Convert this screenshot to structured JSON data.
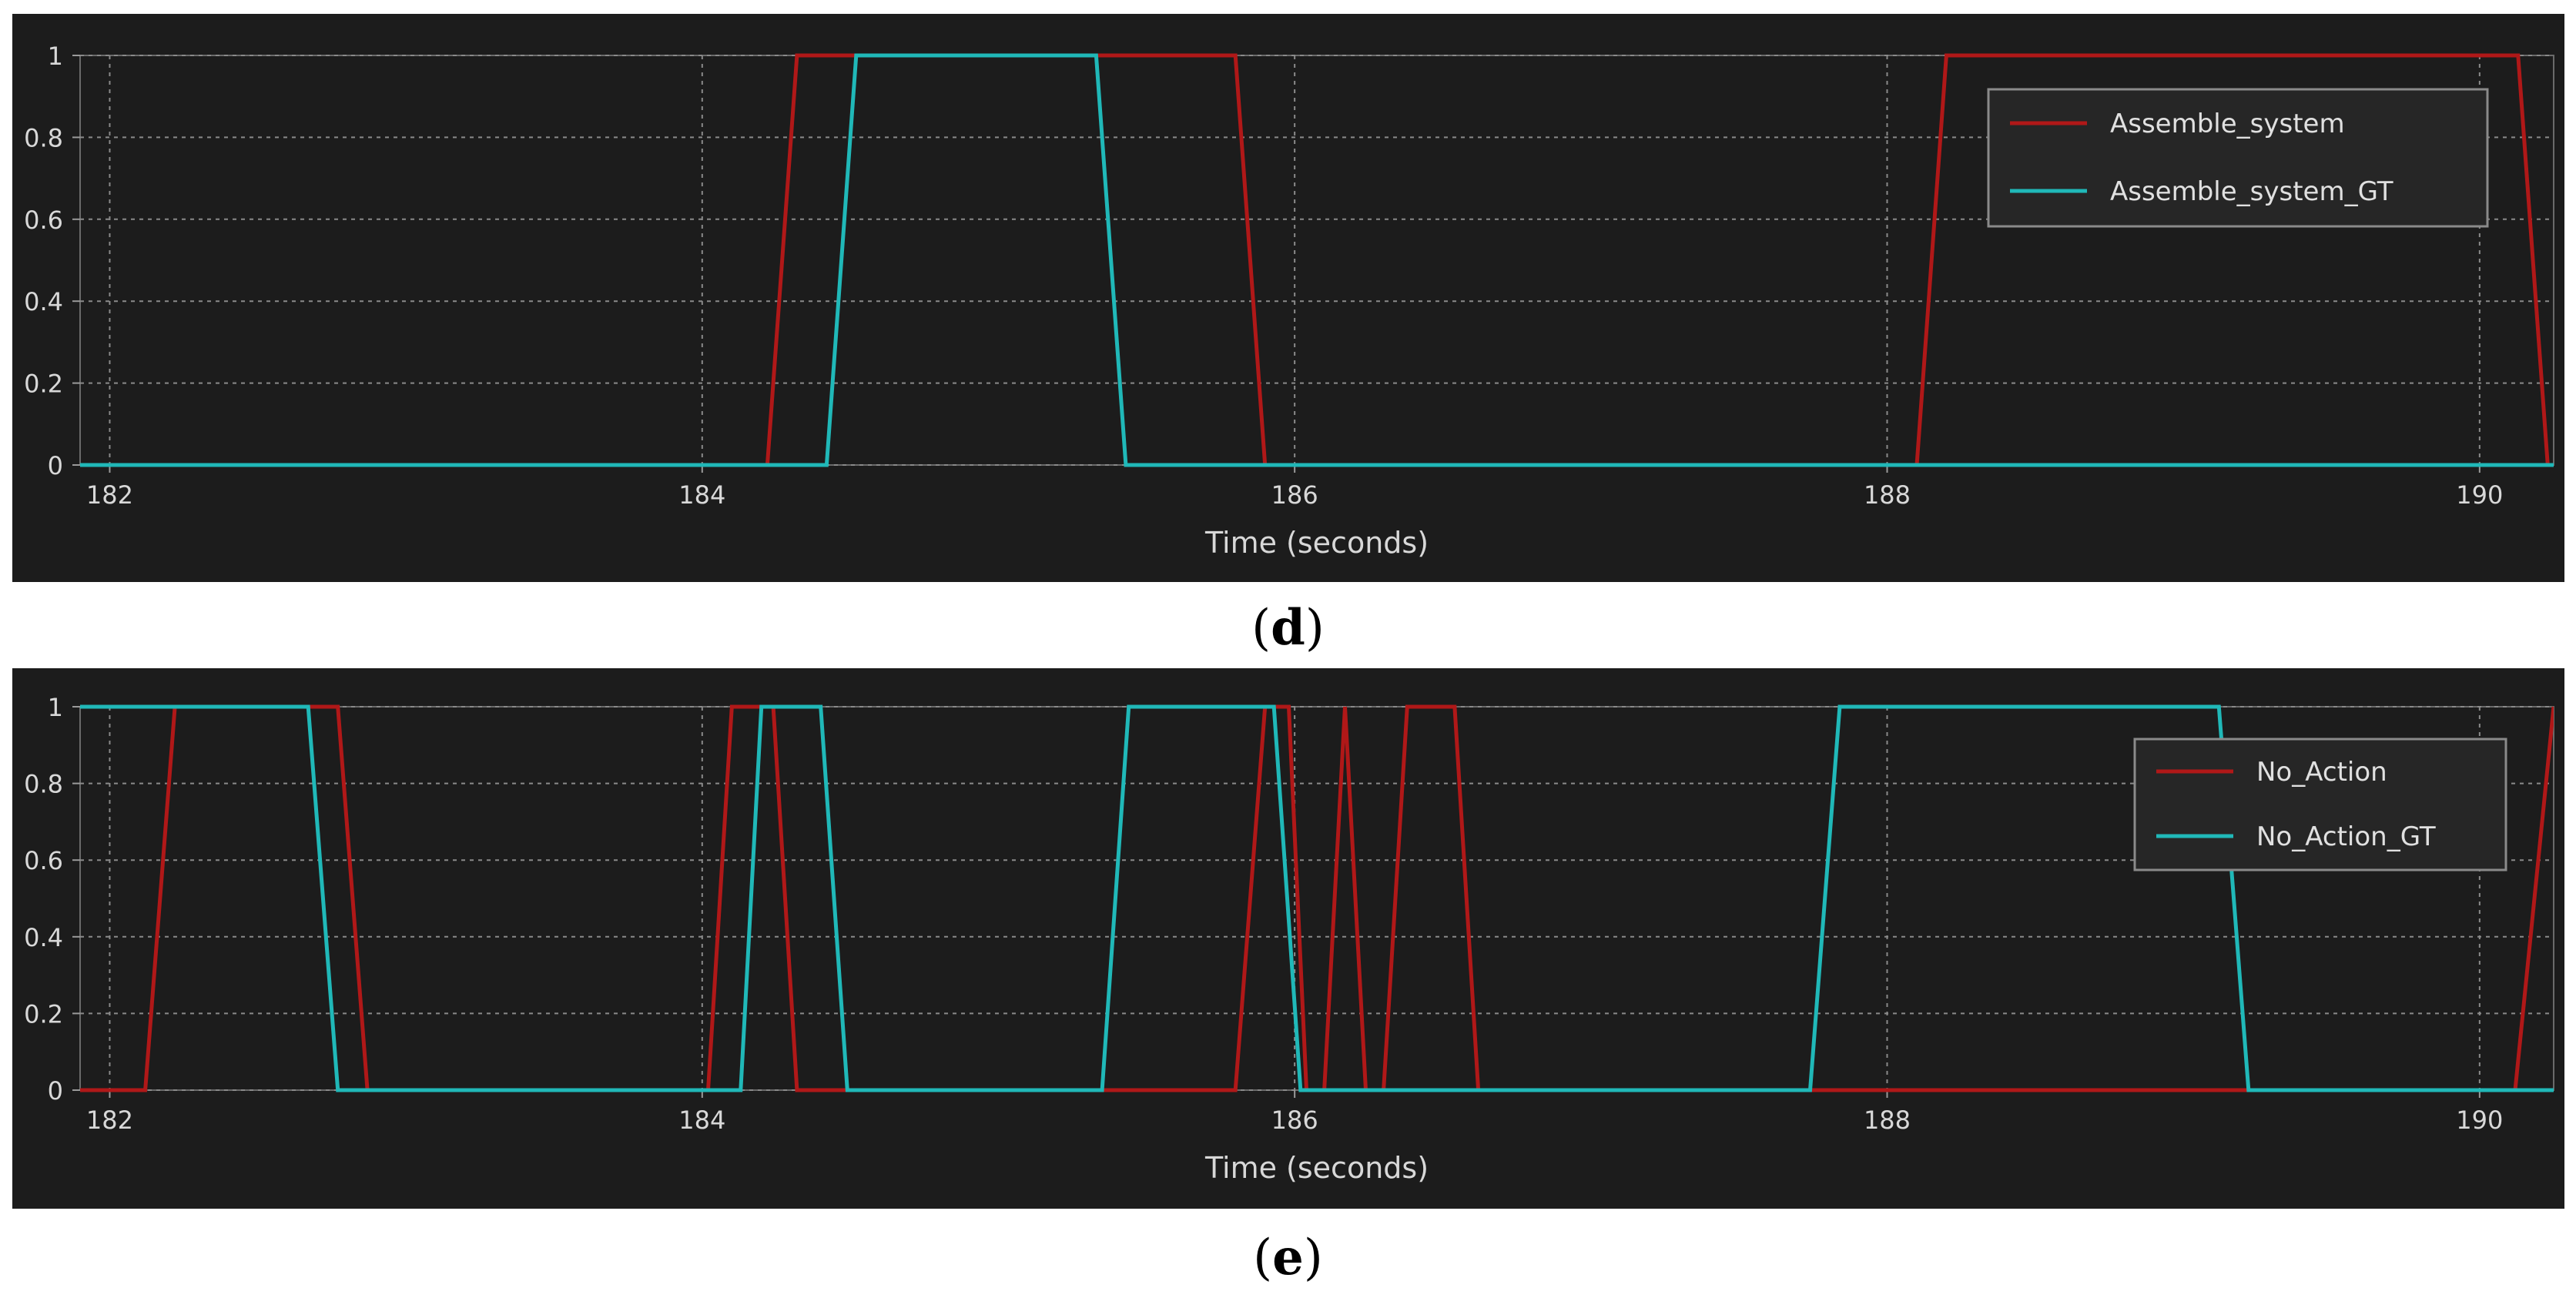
{
  "charts": [
    {
      "caption_letter": "d",
      "chart_data": {
        "type": "line",
        "xlabel": "Time (seconds)",
        "ylabel": "",
        "xlim": [
          181.9,
          190.25
        ],
        "ylim": [
          0,
          1
        ],
        "xticks": [
          "182",
          "184",
          "186",
          "188",
          "190"
        ],
        "yticks": [
          "0",
          "0.2",
          "0.4",
          "0.6",
          "0.8",
          "1"
        ],
        "grid": true,
        "legend_position": "top-right",
        "series": [
          {
            "name": "Assemble_system",
            "color": "#b01818",
            "x": [
              181.9,
              184.22,
              184.32,
              185.8,
              185.9,
              188.1,
              188.2,
              190.13,
              190.23
            ],
            "y": [
              0,
              0,
              1,
              1,
              0,
              0,
              1,
              1,
              0
            ]
          },
          {
            "name": "Assemble_system_GT",
            "color": "#20b8b8",
            "x": [
              181.9,
              184.42,
              184.52,
              185.33,
              185.43,
              190.25
            ],
            "y": [
              0,
              0,
              1,
              1,
              0,
              0
            ]
          }
        ]
      }
    },
    {
      "caption_letter": "e",
      "chart_data": {
        "type": "line",
        "xlabel": "Time (seconds)",
        "ylabel": "",
        "xlim": [
          181.9,
          190.25
        ],
        "ylim": [
          0,
          1
        ],
        "xticks": [
          "182",
          "184",
          "186",
          "188",
          "190"
        ],
        "yticks": [
          "0",
          "0.2",
          "0.4",
          "0.6",
          "0.8",
          "1"
        ],
        "grid": true,
        "legend_position": "top-right",
        "series": [
          {
            "name": "No_Action",
            "color": "#b01818",
            "x": [
              181.9,
              182.12,
              182.22,
              182.77,
              182.87,
              184.02,
              184.1,
              184.24,
              184.32,
              185.8,
              185.9,
              185.98,
              186.04,
              186.1,
              186.17,
              186.24,
              186.3,
              186.38,
              186.44,
              186.54,
              186.62,
              190.12,
              190.25
            ],
            "y": [
              0,
              0,
              1,
              1,
              0,
              0,
              1,
              1,
              0,
              0,
              1,
              1,
              0,
              0,
              1,
              0,
              0,
              1,
              1,
              1,
              0,
              0,
              1
            ]
          },
          {
            "name": "No_Action_GT",
            "color": "#20b8b8",
            "x": [
              181.9,
              182.67,
              182.77,
              184.13,
              184.2,
              184.4,
              184.49,
              185.35,
              185.44,
              185.93,
              186.02,
              187.74,
              187.84,
              189.12,
              189.22,
              190.25
            ],
            "y": [
              1,
              1,
              0,
              0,
              1,
              1,
              0,
              0,
              1,
              1,
              0,
              0,
              1,
              1,
              0,
              0
            ]
          }
        ]
      }
    }
  ]
}
